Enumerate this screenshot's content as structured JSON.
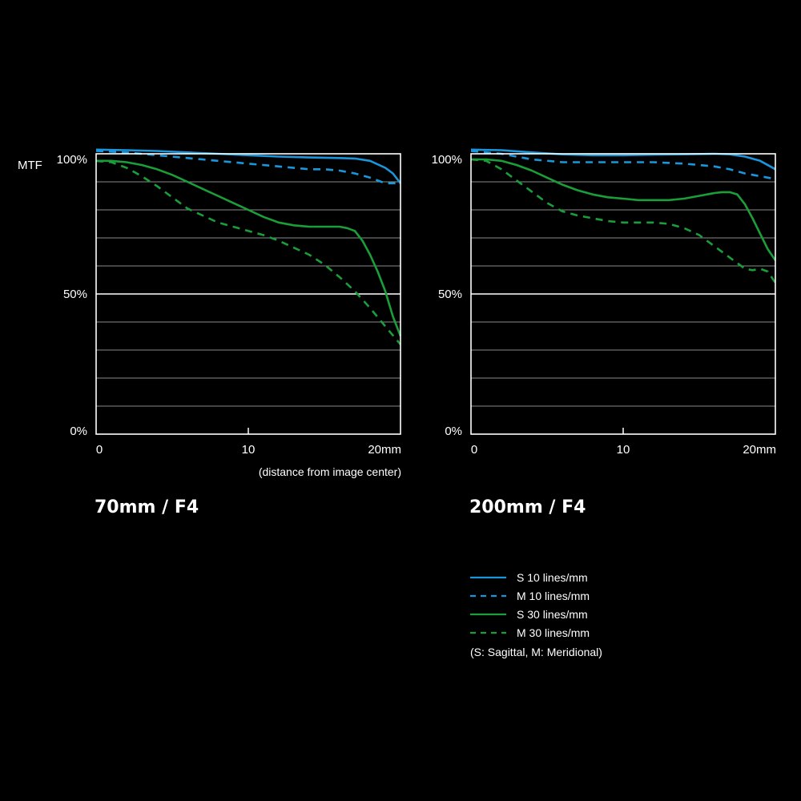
{
  "y_axis_label": "MTF",
  "x_axis_note": "(distance from image center)",
  "legend": {
    "entries": [
      {
        "label": "S  10 lines/mm",
        "color": "#1a96dc",
        "dash": false
      },
      {
        "label": "M 10 lines/mm",
        "color": "#1a96dc",
        "dash": true
      },
      {
        "label": "S  30 lines/mm",
        "color": "#1a9e3a",
        "dash": false
      },
      {
        "label": "M 30 lines/mm",
        "color": "#1a9e3a",
        "dash": true
      }
    ],
    "note": "(S: Sagittal, M: Meridional)"
  },
  "chart_data": [
    {
      "type": "line",
      "title": "70mm / F4",
      "xlim": [
        0,
        20
      ],
      "ylim": [
        0,
        100
      ],
      "x_ticks": [
        "0",
        "10",
        "20mm"
      ],
      "y_ticks": [
        "0%",
        "50%",
        "100%"
      ],
      "grid": true,
      "series": [
        {
          "name": "S  10 lines/mm",
          "color": "#1a96dc",
          "dash": false,
          "x": [
            0,
            2,
            4,
            6,
            8,
            10,
            12,
            14,
            16,
            17,
            18,
            19,
            19.5,
            20
          ],
          "y": [
            101.5,
            101.3,
            101,
            100.5,
            100,
            99.5,
            99,
            98.7,
            98.5,
            98.3,
            97.5,
            95,
            93,
            89.5
          ]
        },
        {
          "name": "M 10 lines/mm",
          "color": "#1a96dc",
          "dash": true,
          "x": [
            0,
            2,
            4,
            6,
            8,
            10,
            12,
            14,
            15,
            16,
            17,
            18,
            19,
            20
          ],
          "y": [
            101,
            100.5,
            99.5,
            98.5,
            97.5,
            96.5,
            95.5,
            94.5,
            94.5,
            94,
            93,
            91.5,
            89.5,
            89.5
          ]
        },
        {
          "name": "S  30 lines/mm",
          "color": "#1a9e3a",
          "dash": false,
          "x": [
            0,
            1,
            2,
            3,
            4,
            5,
            6,
            7,
            8,
            9,
            10,
            11,
            12,
            13,
            14,
            15,
            16,
            16.5,
            17,
            17.5,
            18,
            18.5,
            19,
            19.5,
            20
          ],
          "y": [
            97.5,
            97.5,
            97,
            96,
            94.5,
            92.5,
            90,
            87.5,
            85,
            82.5,
            80,
            77.5,
            75.5,
            74.5,
            74,
            74,
            74,
            73.5,
            72.5,
            69,
            64,
            58,
            51,
            42,
            35
          ]
        },
        {
          "name": "M 30 lines/mm",
          "color": "#1a9e3a",
          "dash": true,
          "x": [
            0,
            1,
            2,
            3,
            4,
            5,
            6,
            7,
            8,
            9,
            10,
            11,
            12,
            13,
            14,
            15,
            16,
            17,
            18,
            19,
            20
          ],
          "y": [
            97.5,
            97,
            95,
            92,
            88.5,
            84.5,
            80.5,
            78,
            75.5,
            74,
            72.5,
            71,
            69,
            66.5,
            64,
            60.5,
            56,
            51,
            45,
            38.5,
            32
          ]
        }
      ]
    },
    {
      "type": "line",
      "title": "200mm / F4",
      "xlim": [
        0,
        20
      ],
      "ylim": [
        0,
        100
      ],
      "x_ticks": [
        "0",
        "10",
        "20mm"
      ],
      "y_ticks": [
        "0%",
        "50%",
        "100%"
      ],
      "grid": true,
      "series": [
        {
          "name": "S  10 lines/mm",
          "color": "#1a96dc",
          "dash": false,
          "x": [
            0,
            2,
            4,
            6,
            8,
            10,
            12,
            14,
            16,
            17,
            18,
            19,
            20
          ],
          "y": [
            101.5,
            101.3,
            100.5,
            99.8,
            99.5,
            99.5,
            99.7,
            99.8,
            100,
            99.8,
            99,
            97.5,
            94.5
          ]
        },
        {
          "name": "M 10 lines/mm",
          "color": "#1a96dc",
          "dash": true,
          "x": [
            0,
            2,
            4,
            6,
            8,
            10,
            12,
            14,
            16,
            17,
            18,
            19,
            20
          ],
          "y": [
            101,
            100,
            98,
            97,
            97,
            97,
            97,
            96.5,
            95.5,
            94.5,
            93,
            92,
            91
          ]
        },
        {
          "name": "S  30 lines/mm",
          "color": "#1a9e3a",
          "dash": false,
          "x": [
            0,
            1,
            2,
            3,
            4,
            5,
            6,
            7,
            8,
            9,
            10,
            11,
            12,
            13,
            14,
            15,
            16,
            16.5,
            17,
            17.5,
            18,
            18.5,
            19,
            19.5,
            20
          ],
          "y": [
            98,
            98,
            97.5,
            96,
            94,
            91.5,
            89,
            87,
            85.5,
            84.5,
            84,
            83.5,
            83.5,
            83.5,
            84,
            85,
            86,
            86.3,
            86.3,
            85.5,
            82,
            77,
            71.5,
            66,
            62
          ]
        },
        {
          "name": "M 30 lines/mm",
          "color": "#1a9e3a",
          "dash": true,
          "x": [
            0,
            1,
            2,
            3,
            4,
            5,
            6,
            7,
            8,
            9,
            10,
            11,
            12,
            13,
            14,
            15,
            16,
            17,
            17.5,
            18,
            18.5,
            19,
            19.5,
            20
          ],
          "y": [
            98,
            97.5,
            94.5,
            90.5,
            86.5,
            82.5,
            79.5,
            78,
            77,
            76,
            75.5,
            75.5,
            75.5,
            75,
            73.5,
            71,
            67,
            63,
            61,
            59,
            58.5,
            59,
            58,
            54
          ]
        }
      ]
    }
  ]
}
